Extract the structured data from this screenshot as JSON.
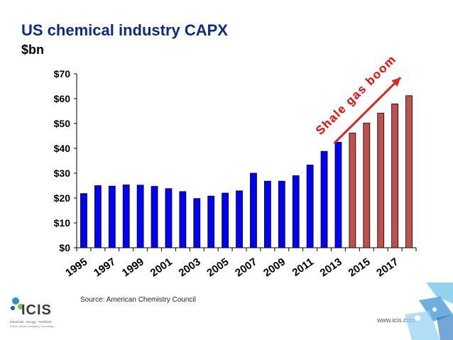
{
  "slide": {
    "title": "US chemical industry CAPX",
    "unit": "$bn",
    "source": "Source: American Chemistry Council",
    "url": "www.icis.com",
    "logo": {
      "name": "ICIS",
      "tagline": "Chemicals · Energy · Fertilizers",
      "tagline2": "Prices | News | Analysis | Consulting"
    }
  },
  "chart_data": {
    "type": "bar",
    "categories": [
      "1995",
      "1996",
      "1997",
      "1998",
      "1999",
      "2000",
      "2001",
      "2002",
      "2003",
      "2004",
      "2005",
      "2006",
      "2007",
      "2008",
      "2009",
      "2010",
      "2011",
      "2012",
      "2013",
      "2014",
      "2015",
      "2016",
      "2017",
      "2018"
    ],
    "x_tick_labels": [
      "1995",
      "1997",
      "1999",
      "2001",
      "2003",
      "2005",
      "2007",
      "2009",
      "2011",
      "2013",
      "2015",
      "2017"
    ],
    "series": [
      {
        "values": [
          21.8,
          25.0,
          24.8,
          25.3,
          25.2,
          24.7,
          23.8,
          22.6,
          19.8,
          20.8,
          22.0,
          22.9,
          30.0,
          26.8,
          26.8,
          29.0,
          33.3,
          38.8,
          42.5,
          null,
          null,
          null,
          null,
          null
        ],
        "color": "#0000ff"
      },
      {
        "values": [
          null,
          null,
          null,
          null,
          null,
          null,
          null,
          null,
          null,
          null,
          null,
          null,
          null,
          null,
          null,
          null,
          null,
          null,
          null,
          46.2,
          50.2,
          54.2,
          57.9,
          61.2
        ],
        "color": "#c0504d"
      }
    ],
    "ylim": [
      0,
      70
    ],
    "y_ticks": [
      0,
      10,
      20,
      30,
      40,
      50,
      60,
      70
    ],
    "y_tick_labels": [
      "$0",
      "$10",
      "$20",
      "$30",
      "$40",
      "$50",
      "$60",
      "$70"
    ],
    "grid": false,
    "annotation": {
      "text": "Shale gas boom",
      "color": "#ff0000",
      "arrow_color": "#e0251b",
      "arrow_from": [
        "2013",
        42
      ],
      "arrow_to": [
        "2017",
        68.5
      ]
    }
  }
}
